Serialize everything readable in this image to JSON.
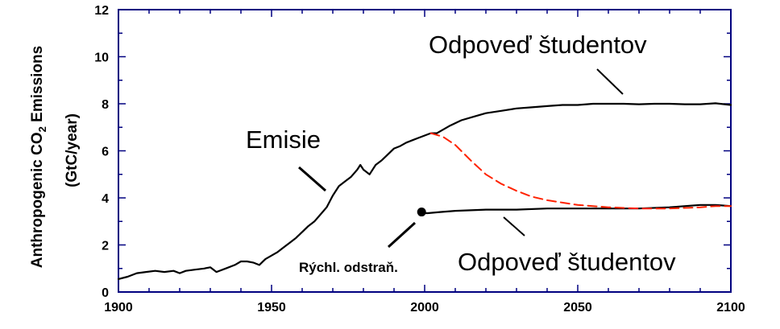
{
  "chart_data": {
    "type": "line",
    "xlabel": "",
    "ylabel_main": "Anthropogenic CO",
    "ylabel_sub": "2",
    "ylabel_tail": "  Emissions",
    "ylabel_units": "(GtC/year)",
    "xlim": [
      1900,
      2100
    ],
    "ylim": [
      0,
      12
    ],
    "xticks": [
      1900,
      1950,
      2000,
      2050,
      2100
    ],
    "yticks": [
      0,
      2,
      4,
      6,
      8,
      10,
      12
    ],
    "grid": false,
    "colors": {
      "axis": "#000080",
      "emissions": "#000000",
      "response": "#000000",
      "dashed": "#ff2200"
    },
    "series": [
      {
        "name": "Emisie",
        "style": "solid",
        "x": [
          1900,
          1903,
          1906,
          1909,
          1912,
          1915,
          1918,
          1920,
          1922,
          1925,
          1928,
          1930,
          1932,
          1935,
          1938,
          1940,
          1942,
          1944,
          1946,
          1948,
          1950,
          1952,
          1954,
          1956,
          1958,
          1960,
          1962,
          1964,
          1966,
          1968,
          1970,
          1972,
          1974,
          1976,
          1978,
          1979,
          1980,
          1982,
          1984,
          1986,
          1988,
          1990,
          1992,
          1994,
          1996,
          1998,
          2000,
          2002,
          2004
        ],
        "y": [
          0.55,
          0.65,
          0.8,
          0.85,
          0.9,
          0.85,
          0.9,
          0.8,
          0.9,
          0.95,
          1.0,
          1.05,
          0.85,
          1.0,
          1.15,
          1.3,
          1.3,
          1.25,
          1.15,
          1.4,
          1.55,
          1.7,
          1.9,
          2.1,
          2.3,
          2.55,
          2.8,
          3.0,
          3.3,
          3.6,
          4.1,
          4.5,
          4.7,
          4.9,
          5.2,
          5.4,
          5.2,
          5.0,
          5.4,
          5.6,
          5.85,
          6.1,
          6.2,
          6.35,
          6.45,
          6.55,
          6.65,
          6.75,
          6.75
        ]
      },
      {
        "name": "Odpoveď študentov",
        "style": "solid",
        "x": [
          2004,
          2008,
          2012,
          2016,
          2020,
          2025,
          2030,
          2035,
          2040,
          2045,
          2050,
          2055,
          2060,
          2065,
          2070,
          2075,
          2080,
          2085,
          2090,
          2095,
          2098,
          2100
        ],
        "y": [
          6.75,
          7.05,
          7.3,
          7.45,
          7.6,
          7.7,
          7.8,
          7.85,
          7.9,
          7.95,
          7.95,
          8.0,
          8.0,
          8.0,
          7.98,
          8.0,
          8.0,
          7.98,
          7.98,
          8.02,
          7.98,
          7.95
        ]
      },
      {
        "name": "Odpoveď študentov",
        "style": "solid",
        "x": [
          1999,
          2001,
          2005,
          2010,
          2020,
          2030,
          2040,
          2050,
          2060,
          2070,
          2080,
          2090,
          2095,
          2100
        ],
        "y": [
          3.35,
          3.35,
          3.4,
          3.45,
          3.5,
          3.5,
          3.55,
          3.55,
          3.55,
          3.55,
          3.6,
          3.7,
          3.7,
          3.65
        ]
      },
      {
        "name": "",
        "style": "dashed",
        "x": [
          2002,
          2006,
          2010,
          2015,
          2020,
          2025,
          2030,
          2035,
          2040,
          2045,
          2050,
          2060,
          2070,
          2080,
          2090,
          2095,
          2100
        ],
        "y": [
          6.75,
          6.6,
          6.25,
          5.6,
          5.0,
          4.6,
          4.3,
          4.05,
          3.9,
          3.8,
          3.7,
          3.6,
          3.55,
          3.55,
          3.6,
          3.65,
          3.65
        ]
      }
    ],
    "marker": {
      "x": 1999,
      "y": 3.4
    },
    "annotations": [
      {
        "text": "Emisie",
        "size": "large"
      },
      {
        "text": "Odpoveď študentov",
        "size": "large"
      },
      {
        "text": "Odpoveď študentov",
        "size": "large"
      },
      {
        "text": "Rýchl. odstraň.",
        "size": "small"
      }
    ]
  }
}
